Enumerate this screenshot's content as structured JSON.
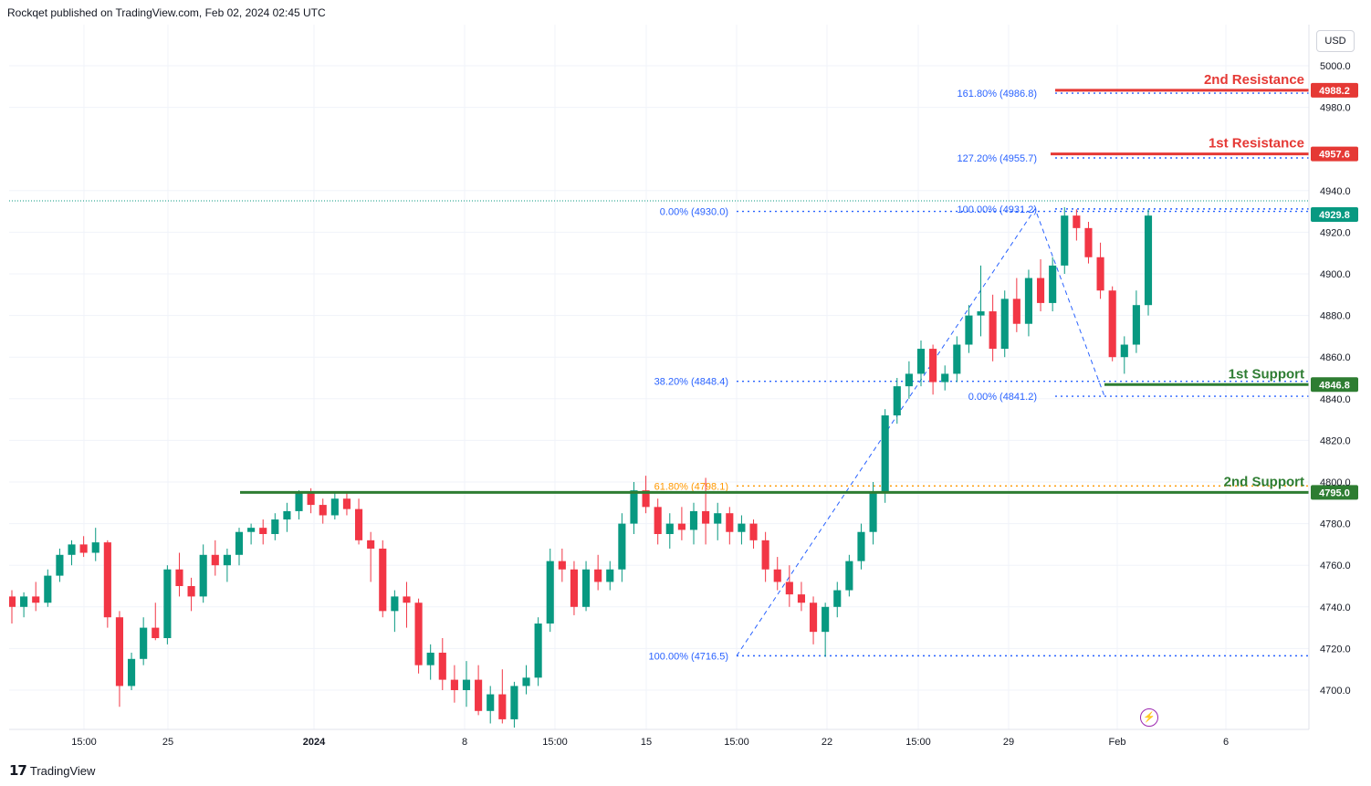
{
  "header": {
    "publisher_line": "Rockqet published on TradingView.com, Feb 02, 2024 02:45 UTC"
  },
  "currency_label": "USD",
  "footer": {
    "brand": "TradingView"
  },
  "icons": {
    "flash": "lightning-icon",
    "logo": "tradingview-logo-icon"
  },
  "colors": {
    "up": "#089981",
    "down": "#f23645",
    "fib": "#2962ff",
    "fib_gold": "#ff9800",
    "support": "#2e7d32",
    "resistance": "#e53935",
    "grid": "#f0f3fa"
  },
  "chart_data": {
    "type": "candlestick",
    "title": "",
    "xlabel": "",
    "ylabel": "",
    "ylim": [
      4680,
      5010
    ],
    "y_ticks": [
      4700,
      4720,
      4740,
      4760,
      4780,
      4800,
      4820,
      4840,
      4860,
      4880,
      4900,
      4920,
      4940,
      4980,
      5000
    ],
    "x_tick_labels": [
      "15:00",
      "25",
      "2024",
      "8",
      "15:00",
      "15",
      "15:00",
      "22",
      "15:00",
      "29",
      "Feb",
      "6"
    ],
    "last_price": 4929.8,
    "candles_ohlc": [
      [
        4745,
        4748,
        4732,
        4740
      ],
      [
        4740,
        4747,
        4735,
        4745
      ],
      [
        4745,
        4752,
        4738,
        4742
      ],
      [
        4742,
        4758,
        4740,
        4755
      ],
      [
        4755,
        4768,
        4752,
        4765
      ],
      [
        4765,
        4772,
        4760,
        4770
      ],
      [
        4770,
        4774,
        4764,
        4766
      ],
      [
        4766,
        4778,
        4762,
        4771
      ],
      [
        4771,
        4772,
        4730,
        4735
      ],
      [
        4735,
        4738,
        4692,
        4702
      ],
      [
        4702,
        4718,
        4700,
        4715
      ],
      [
        4715,
        4735,
        4712,
        4730
      ],
      [
        4730,
        4742,
        4724,
        4725
      ],
      [
        4725,
        4760,
        4722,
        4758
      ],
      [
        4758,
        4766,
        4745,
        4750
      ],
      [
        4750,
        4754,
        4738,
        4745
      ],
      [
        4745,
        4770,
        4742,
        4765
      ],
      [
        4765,
        4772,
        4755,
        4760
      ],
      [
        4760,
        4768,
        4752,
        4765
      ],
      [
        4765,
        4778,
        4760,
        4776
      ],
      [
        4776,
        4780,
        4770,
        4778
      ],
      [
        4778,
        4782,
        4770,
        4775
      ],
      [
        4775,
        4785,
        4772,
        4782
      ],
      [
        4782,
        4790,
        4776,
        4786
      ],
      [
        4786,
        4796,
        4782,
        4795
      ],
      [
        4795,
        4797,
        4785,
        4789
      ],
      [
        4789,
        4792,
        4780,
        4784
      ],
      [
        4784,
        4795,
        4782,
        4792
      ],
      [
        4792,
        4795,
        4784,
        4787
      ],
      [
        4787,
        4792,
        4770,
        4772
      ],
      [
        4772,
        4776,
        4752,
        4768
      ],
      [
        4768,
        4772,
        4735,
        4738
      ],
      [
        4738,
        4748,
        4728,
        4745
      ],
      [
        4745,
        4752,
        4730,
        4742
      ],
      [
        4742,
        4744,
        4708,
        4712
      ],
      [
        4712,
        4722,
        4705,
        4718
      ],
      [
        4718,
        4725,
        4700,
        4705
      ],
      [
        4705,
        4712,
        4694,
        4700
      ],
      [
        4700,
        4714,
        4692,
        4705
      ],
      [
        4705,
        4712,
        4688,
        4690
      ],
      [
        4690,
        4702,
        4684,
        4698
      ],
      [
        4698,
        4710,
        4684,
        4686
      ],
      [
        4686,
        4704,
        4682,
        4702
      ],
      [
        4702,
        4712,
        4698,
        4706
      ],
      [
        4706,
        4735,
        4702,
        4732
      ],
      [
        4732,
        4768,
        4728,
        4762
      ],
      [
        4762,
        4768,
        4752,
        4758
      ],
      [
        4758,
        4762,
        4736,
        4740
      ],
      [
        4740,
        4762,
        4738,
        4758
      ],
      [
        4758,
        4765,
        4748,
        4752
      ],
      [
        4752,
        4762,
        4748,
        4758
      ],
      [
        4758,
        4785,
        4752,
        4780
      ],
      [
        4780,
        4800,
        4775,
        4796
      ],
      [
        4796,
        4803,
        4785,
        4788
      ],
      [
        4788,
        4792,
        4770,
        4775
      ],
      [
        4775,
        4785,
        4768,
        4780
      ],
      [
        4780,
        4788,
        4772,
        4777
      ],
      [
        4777,
        4790,
        4770,
        4786
      ],
      [
        4786,
        4802,
        4770,
        4780
      ],
      [
        4780,
        4790,
        4772,
        4785
      ],
      [
        4785,
        4788,
        4770,
        4776
      ],
      [
        4776,
        4784,
        4770,
        4780
      ],
      [
        4780,
        4782,
        4768,
        4772
      ],
      [
        4772,
        4776,
        4752,
        4758
      ],
      [
        4758,
        4764,
        4748,
        4752
      ],
      [
        4752,
        4760,
        4740,
        4746
      ],
      [
        4746,
        4752,
        4738,
        4742
      ],
      [
        4742,
        4745,
        4722,
        4728
      ],
      [
        4728,
        4742,
        4716,
        4740
      ],
      [
        4740,
        4752,
        4735,
        4748
      ],
      [
        4748,
        4765,
        4745,
        4762
      ],
      [
        4762,
        4780,
        4758,
        4776
      ],
      [
        4776,
        4800,
        4770,
        4795
      ],
      [
        4795,
        4835,
        4790,
        4832
      ],
      [
        4832,
        4850,
        4828,
        4846
      ],
      [
        4846,
        4858,
        4840,
        4852
      ],
      [
        4852,
        4868,
        4846,
        4864
      ],
      [
        4864,
        4866,
        4842,
        4848
      ],
      [
        4848,
        4856,
        4844,
        4852
      ],
      [
        4852,
        4870,
        4848,
        4866
      ],
      [
        4866,
        4885,
        4862,
        4880
      ],
      [
        4880,
        4904,
        4870,
        4882
      ],
      [
        4882,
        4890,
        4858,
        4864
      ],
      [
        4864,
        4892,
        4860,
        4888
      ],
      [
        4888,
        4898,
        4872,
        4876
      ],
      [
        4876,
        4902,
        4870,
        4898
      ],
      [
        4898,
        4907,
        4882,
        4886
      ],
      [
        4886,
        4908,
        4882,
        4904
      ],
      [
        4904,
        4932,
        4900,
        4928
      ],
      [
        4928,
        4931,
        4916,
        4922
      ],
      [
        4922,
        4925,
        4905,
        4908
      ],
      [
        4908,
        4915,
        4888,
        4892
      ],
      [
        4892,
        4894,
        4858,
        4860
      ],
      [
        4860,
        4870,
        4852,
        4866
      ],
      [
        4866,
        4892,
        4862,
        4885
      ],
      [
        4885,
        4931,
        4880,
        4928
      ]
    ],
    "fib_levels": [
      {
        "label": "0.00% (4930.0)",
        "value": 4930.0
      },
      {
        "label": "38.20% (4848.4)",
        "value": 4848.4
      },
      {
        "label": "61.80% (4798.1)",
        "value": 4798.1
      },
      {
        "label": "100.00% (4716.5)",
        "value": 4716.5
      },
      {
        "label": "161.80% (4986.8)",
        "value": 4986.8
      },
      {
        "label": "127.20% (4955.7)",
        "value": 4955.7
      },
      {
        "label": "100.00% (4931.2)",
        "value": 4931.2
      },
      {
        "label": "0.00% (4841.2)",
        "value": 4841.2
      }
    ],
    "key_levels": [
      {
        "name": "2nd Resistance",
        "value": 4988.2,
        "badge": "4988.2",
        "color": "#e53935"
      },
      {
        "name": "1st Resistance",
        "value": 4957.6,
        "badge": "4957.6",
        "color": "#e53935"
      },
      {
        "name": "1st Support",
        "value": 4846.8,
        "badge": "4846.8",
        "color": "#2e7d32"
      },
      {
        "name": "2nd Support",
        "value": 4795.0,
        "badge": "4795.0",
        "color": "#2e7d32"
      }
    ],
    "last_price_badge": "4929.8"
  }
}
